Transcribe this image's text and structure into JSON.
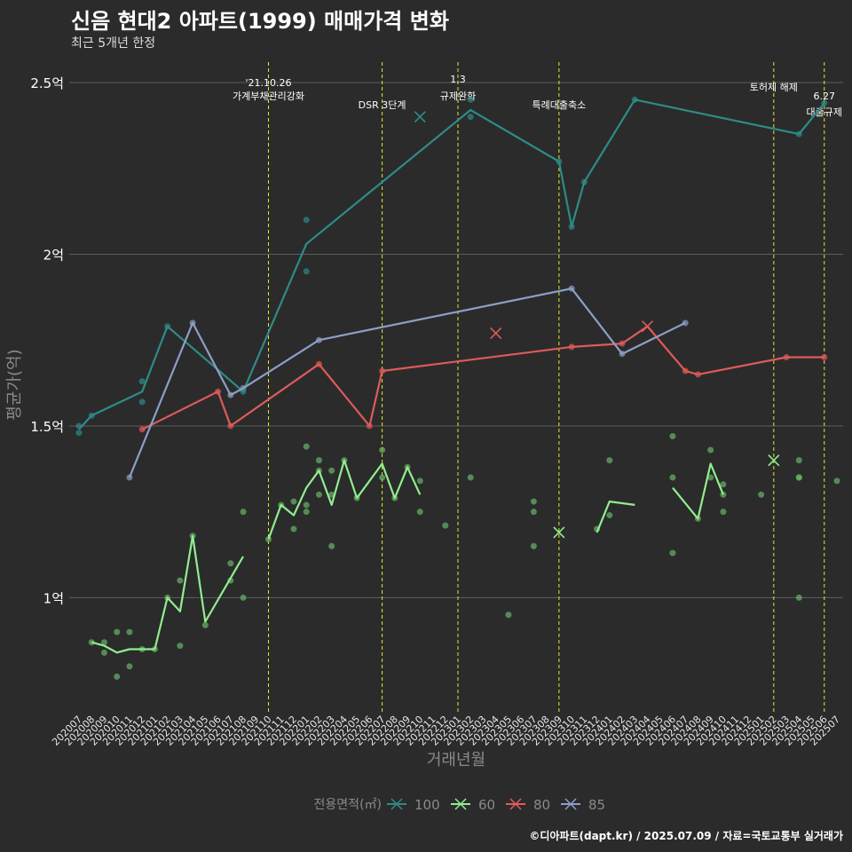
{
  "title": "신음 현대2 아파트(1999) 매매가격 변화",
  "subtitle": "최근 5개년 한정",
  "caption": "©디아파트(dapt.kr) / 2025.07.09 / 자료=국토교통부 실거래가",
  "colors": {
    "background": "#2b2b2b",
    "grid": "#5e5e5e",
    "event_line": "#e6e632",
    "s100": "#2e8b87",
    "s60": "#90ee90",
    "s80": "#e05a5a",
    "s85": "#8c9fc8",
    "points": "#6ab46a"
  },
  "chart_data": {
    "type": "line",
    "title": "신음 현대2 아파트(1999) 매매가격 변화",
    "xlabel": "거래년월",
    "ylabel": "평균가(억)",
    "ylim": [
      0.66,
      2.58
    ],
    "yticks": [
      1,
      1.5,
      2,
      2.5
    ],
    "ytick_labels": [
      "1억",
      "1.5억",
      "2억",
      "2.5억"
    ],
    "months": [
      "202007",
      "202008",
      "202009",
      "202010",
      "202011",
      "202012",
      "202101",
      "202102",
      "202103",
      "202104",
      "202105",
      "202106",
      "202107",
      "202108",
      "202109",
      "202110",
      "202111",
      "202112",
      "202201",
      "202202",
      "202203",
      "202204",
      "202205",
      "202206",
      "202207",
      "202208",
      "202209",
      "202210",
      "202211",
      "202212",
      "202301",
      "202302",
      "202303",
      "202304",
      "202305",
      "202306",
      "202307",
      "202308",
      "202309",
      "202310",
      "202311",
      "202312",
      "202401",
      "202402",
      "202403",
      "202404",
      "202405",
      "202406",
      "202407",
      "202408",
      "202409",
      "202410",
      "202411",
      "202412",
      "202501",
      "202502",
      "202503",
      "202504",
      "202505",
      "202506",
      "202507"
    ],
    "legend": {
      "title": "전용면적(㎡)",
      "position": "bottom",
      "items": [
        "100",
        "60",
        "80",
        "85"
      ]
    },
    "events": [
      {
        "month": "202110",
        "label": "'21.10.26\n가계부채관리강화"
      },
      {
        "month": "202207",
        "label": "DSR 3단계"
      },
      {
        "month": "202301",
        "label": "1.3\n규제완화"
      },
      {
        "month": "202309",
        "label": "특례대출축소"
      },
      {
        "month": "202502",
        "label": "토허제 해제"
      },
      {
        "month": "202506",
        "label": "6.27\n대출규제"
      }
    ],
    "series": [
      {
        "name": "100",
        "color_key": "s100",
        "segments": [
          [
            [
              "202007",
              1.49
            ],
            [
              "202008",
              1.53
            ],
            [
              "202012",
              1.6
            ],
            [
              "202102",
              1.79
            ],
            [
              "202108",
              1.6
            ],
            [
              "202201",
              2.03
            ],
            [
              "202302",
              2.42
            ],
            [
              "202309",
              2.27
            ],
            [
              "202310",
              2.08
            ],
            [
              "202311",
              2.21
            ],
            [
              "202403",
              2.45
            ],
            [
              "202504",
              2.35
            ],
            [
              "202506",
              2.44
            ]
          ]
        ],
        "points": [
          [
            "202007",
            1.5
          ],
          [
            "202007",
            1.48
          ],
          [
            "202008",
            1.53
          ],
          [
            "202012",
            1.63
          ],
          [
            "202012",
            1.57
          ],
          [
            "202102",
            1.79
          ],
          [
            "202108",
            1.6
          ],
          [
            "202201",
            2.1
          ],
          [
            "202201",
            1.95
          ],
          [
            "202302",
            2.45
          ],
          [
            "202302",
            2.4
          ],
          [
            "202309",
            2.27
          ],
          [
            "202310",
            2.08
          ],
          [
            "202311",
            2.21
          ],
          [
            "202403",
            2.45
          ],
          [
            "202504",
            2.35
          ],
          [
            "202506",
            2.44
          ]
        ],
        "crosses": [
          [
            "202210",
            2.4
          ]
        ]
      },
      {
        "name": "60",
        "color_key": "s60",
        "segments": [
          [
            [
              "202008",
              0.87
            ],
            [
              "202009",
              0.86
            ],
            [
              "202010",
              0.84
            ],
            [
              "202011",
              0.85
            ],
            [
              "202012",
              0.85
            ],
            [
              "202101",
              0.85
            ],
            [
              "202102",
              1.0
            ],
            [
              "202103",
              0.96
            ],
            [
              "202104",
              1.18
            ],
            [
              "202105",
              0.93
            ],
            [
              "202108",
              1.12
            ]
          ],
          [
            [
              "202110",
              1.17
            ],
            [
              "202111",
              1.27
            ],
            [
              "202112",
              1.24
            ],
            [
              "202201",
              1.32
            ],
            [
              "202202",
              1.37
            ],
            [
              "202203",
              1.27
            ],
            [
              "202204",
              1.4
            ],
            [
              "202205",
              1.29
            ],
            [
              "202207",
              1.39
            ],
            [
              "202208",
              1.29
            ],
            [
              "202209",
              1.38
            ],
            [
              "202210",
              1.3
            ]
          ],
          [
            [
              "202312",
              1.19
            ],
            [
              "202401",
              1.28
            ],
            [
              "202403",
              1.27
            ]
          ],
          [
            [
              "202406",
              1.32
            ],
            [
              "202408",
              1.23
            ],
            [
              "202409",
              1.39
            ],
            [
              "202410",
              1.3
            ]
          ]
        ],
        "points": [
          [
            "202008",
            0.87
          ],
          [
            "202009",
            0.84
          ],
          [
            "202009",
            0.87
          ],
          [
            "202010",
            0.77
          ],
          [
            "202010",
            0.9
          ],
          [
            "202011",
            0.8
          ],
          [
            "202011",
            0.9
          ],
          [
            "202012",
            0.85
          ],
          [
            "202101",
            0.85
          ],
          [
            "202102",
            1.0
          ],
          [
            "202103",
            1.05
          ],
          [
            "202103",
            0.86
          ],
          [
            "202104",
            1.18
          ],
          [
            "202105",
            0.92
          ],
          [
            "202107",
            1.1
          ],
          [
            "202107",
            1.05
          ],
          [
            "202108",
            1.25
          ],
          [
            "202108",
            1.0
          ],
          [
            "202110",
            1.17
          ],
          [
            "202111",
            1.27
          ],
          [
            "202112",
            1.2
          ],
          [
            "202112",
            1.28
          ],
          [
            "202201",
            1.44
          ],
          [
            "202201",
            1.27
          ],
          [
            "202201",
            1.25
          ],
          [
            "202202",
            1.4
          ],
          [
            "202202",
            1.37
          ],
          [
            "202202",
            1.3
          ],
          [
            "202203",
            1.15
          ],
          [
            "202203",
            1.37
          ],
          [
            "202203",
            1.3
          ],
          [
            "202204",
            1.4
          ],
          [
            "202205",
            1.29
          ],
          [
            "202207",
            1.43
          ],
          [
            "202207",
            1.35
          ],
          [
            "202208",
            1.29
          ],
          [
            "202209",
            1.38
          ],
          [
            "202210",
            1.34
          ],
          [
            "202210",
            1.25
          ],
          [
            "202212",
            1.21
          ],
          [
            "202302",
            1.35
          ],
          [
            "202305",
            0.95
          ],
          [
            "202307",
            1.28
          ],
          [
            "202307",
            1.25
          ],
          [
            "202307",
            1.15
          ],
          [
            "202312",
            1.2
          ],
          [
            "202401",
            1.24
          ],
          [
            "202401",
            1.4
          ],
          [
            "202406",
            1.47
          ],
          [
            "202406",
            1.35
          ],
          [
            "202406",
            1.13
          ],
          [
            "202408",
            1.23
          ],
          [
            "202409",
            1.43
          ],
          [
            "202409",
            1.35
          ],
          [
            "202410",
            1.33
          ],
          [
            "202410",
            1.3
          ],
          [
            "202410",
            1.25
          ],
          [
            "202501",
            1.3
          ],
          [
            "202504",
            1.4
          ],
          [
            "202504",
            1.35
          ],
          [
            "202504",
            1.35
          ],
          [
            "202504",
            1.0
          ],
          [
            "202507",
            1.34
          ]
        ],
        "crosses": [
          [
            "202309",
            1.19
          ],
          [
            "202502",
            1.4
          ]
        ]
      },
      {
        "name": "80",
        "color_key": "s80",
        "segments": [
          [
            [
              "202012",
              1.49
            ],
            [
              "202106",
              1.6
            ],
            [
              "202107",
              1.5
            ],
            [
              "202202",
              1.68
            ],
            [
              "202206",
              1.5
            ],
            [
              "202207",
              1.66
            ],
            [
              "202310",
              1.73
            ],
            [
              "202402",
              1.74
            ],
            [
              "202404",
              1.79
            ],
            [
              "202407",
              1.66
            ],
            [
              "202408",
              1.65
            ],
            [
              "202503",
              1.7
            ],
            [
              "202506",
              1.7
            ]
          ]
        ],
        "points": [
          [
            "202012",
            1.49
          ],
          [
            "202106",
            1.6
          ],
          [
            "202107",
            1.5
          ],
          [
            "202202",
            1.68
          ],
          [
            "202206",
            1.5
          ],
          [
            "202207",
            1.66
          ],
          [
            "202310",
            1.73
          ],
          [
            "202402",
            1.74
          ],
          [
            "202407",
            1.66
          ],
          [
            "202408",
            1.65
          ],
          [
            "202503",
            1.7
          ],
          [
            "202506",
            1.7
          ]
        ],
        "crosses": [
          [
            "202304",
            1.77
          ],
          [
            "202404",
            1.79
          ]
        ]
      },
      {
        "name": "85",
        "color_key": "s85",
        "segments": [
          [
            [
              "202011",
              1.35
            ],
            [
              "202104",
              1.8
            ],
            [
              "202107",
              1.59
            ],
            [
              "202108",
              1.61
            ],
            [
              "202202",
              1.75
            ],
            [
              "202310",
              1.9
            ],
            [
              "202402",
              1.71
            ],
            [
              "202407",
              1.8
            ]
          ]
        ],
        "points": [
          [
            "202011",
            1.35
          ],
          [
            "202104",
            1.8
          ],
          [
            "202107",
            1.59
          ],
          [
            "202108",
            1.61
          ],
          [
            "202202",
            1.75
          ],
          [
            "202310",
            1.9
          ],
          [
            "202402",
            1.71
          ],
          [
            "202407",
            1.8
          ]
        ],
        "crosses": []
      }
    ]
  }
}
